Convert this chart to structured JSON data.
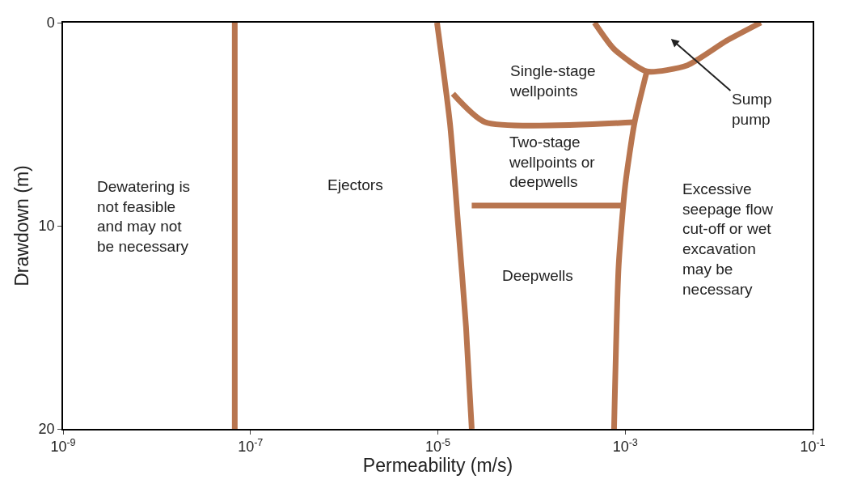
{
  "chart_data": {
    "type": "line",
    "xlabel": "Permeability (m/s)",
    "ylabel": "Drawdown (m)",
    "log": "x",
    "marker": "none",
    "line_style": "solid",
    "xlim": [
      1e-09,
      0.1
    ],
    "ylim": [
      20,
      0
    ],
    "xticks": [
      {
        "value": 1e-09,
        "label": "10$^{-9}$"
      },
      {
        "value": 1e-07,
        "label": "10$^{-7}$"
      },
      {
        "value": 1e-05,
        "label": "10$^{-5}$"
      },
      {
        "value": 0.001,
        "label": "10$^{-3}$"
      },
      {
        "value": 0.1,
        "label": "10$^{-1}$"
      }
    ],
    "yticks": [
      0,
      10,
      20
    ],
    "series": [
      {
        "color": "#b8754f",
        "x": [
          6.8e-08,
          6.8e-08
        ],
        "values": [
          0,
          20
        ]
      },
      {
        "color": "#b8754f",
        "x": [
          9.8e-06,
          1.35e-05,
          1.65e-05,
          2e-05,
          2.3e-05
        ],
        "values": [
          0,
          5,
          10,
          15,
          20
        ]
      },
      {
        "color": "#b8754f",
        "x": [
          0.0017,
          0.00126,
          0.001,
          0.00085,
          0.00076
        ],
        "values": [
          2.4,
          4.9,
          8,
          12,
          20
        ]
      },
      {
        "color": "#b8754f",
        "x": [
          0.00047,
          0.00076,
          0.0017,
          0.0046,
          0.012,
          0.028
        ],
        "values": [
          0,
          1.3,
          2.4,
          2.1,
          0.9,
          0
        ]
      },
      {
        "color": "#b8754f",
        "x": [
          1.45e-05,
          3.2e-05,
          0.00126
        ],
        "values": [
          3.5,
          4.9,
          4.9
        ]
      },
      {
        "color": "#b8754f",
        "x": [
          2.3e-05,
          0.00098
        ],
        "values": [
          9,
          9
        ]
      }
    ],
    "annotations": [
      "Dewatering is\nnot feasible\nand may not\nbe necessary",
      "Ejectors",
      "Single-stage\nwellpoints",
      "Two-stage\nwellpoints or\ndeepwells",
      "Deepwells",
      "Excessive\nseepage flow\ncut-off or wet\nexcavation\nmay be\nnecessary",
      "Sump\npump"
    ]
  }
}
